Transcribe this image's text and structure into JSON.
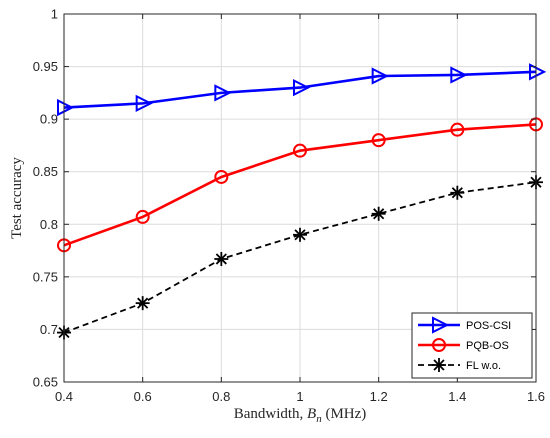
{
  "chart_data": {
    "type": "line",
    "x": [
      0.4,
      0.6,
      0.8,
      1.0,
      1.2,
      1.4,
      1.6
    ],
    "xticks": [
      "0.4",
      "0.6",
      "0.8",
      "1",
      "1.2",
      "1.4",
      "1.6"
    ],
    "yticks": [
      "0.65",
      "0.7",
      "0.75",
      "0.8",
      "0.85",
      "0.9",
      "0.95",
      "1"
    ],
    "xlim": [
      0.4,
      1.6
    ],
    "ylim": [
      0.65,
      1.0
    ],
    "xlabel": {
      "prefix": "Bandwidth, ",
      "var": "B",
      "sub": "n",
      "suffix": " (MHz)"
    },
    "ylabel": "Test accuracy",
    "grid": true,
    "legend_position": "bottom-right",
    "series": [
      {
        "name": "POS-CSI",
        "values": [
          0.911,
          0.915,
          0.925,
          0.93,
          0.941,
          0.942,
          0.945
        ],
        "color": "#0000ff",
        "marker": "triangle-right",
        "line": "solid"
      },
      {
        "name": "PQB-OS",
        "values": [
          0.78,
          0.807,
          0.845,
          0.87,
          0.88,
          0.89,
          0.895
        ],
        "color": "#ff0000",
        "marker": "circle",
        "line": "solid"
      },
      {
        "name": "FL w.o.",
        "values": [
          0.697,
          0.725,
          0.767,
          0.79,
          0.81,
          0.83,
          0.84
        ],
        "color": "#000000",
        "marker": "asterisk",
        "line": "dashed"
      }
    ]
  }
}
